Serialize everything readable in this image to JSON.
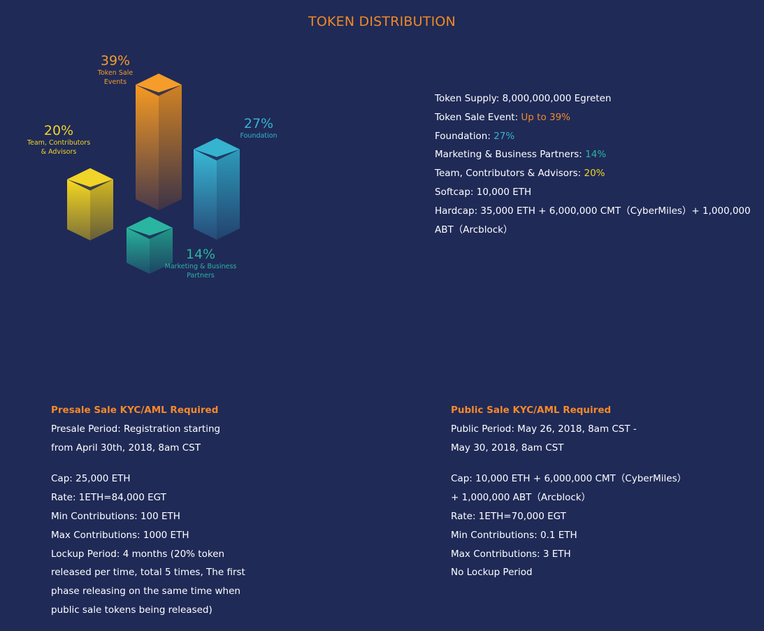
{
  "title": "TOKEN DISTRIBUTION",
  "chart": {
    "segments": [
      {
        "key": "sale",
        "percent": "39%",
        "label": "Token Sale Events",
        "label_lines": [
          "Token Sale",
          "Events"
        ],
        "value": 39,
        "color": "#f59c2a"
      },
      {
        "key": "team",
        "percent": "20%",
        "label": "Team, Contributors & Advisors",
        "label_lines": [
          "Team, Contributors",
          "& Advisors"
        ],
        "value": 20,
        "color": "#f0d427"
      },
      {
        "key": "foundation",
        "percent": "27%",
        "label": "Foundation",
        "label_lines": [
          "Foundation"
        ],
        "value": 27,
        "color": "#35b3cf"
      },
      {
        "key": "marketing",
        "percent": "14%",
        "label": "Marketing & Business Partners",
        "label_lines": [
          "Marketing & Business",
          "Partners"
        ],
        "value": 14,
        "color": "#2ab5a0"
      }
    ]
  },
  "info": {
    "supply_label": "Token Supply: 8,000,000,000 Egreten",
    "sale_label": "Token Sale Event: ",
    "sale_value": "Up to 39%",
    "foundation_label": "Foundation: ",
    "foundation_value": "27%",
    "marketing_label": "Marketing & Business Partners: ",
    "marketing_value": "14%",
    "team_label": "Team, Contributors & Advisors: ",
    "team_value": "20%",
    "softcap": "Softcap: 10,000 ETH",
    "hardcap_line1": "Hardcap: 35,000 ETH + 6,000,000 CMT（CyberMiles）+ 1,000,000",
    "hardcap_line2": "ABT（Arcblock）"
  },
  "presale": {
    "heading": "Presale Sale KYC/AML Required",
    "period_line1": "Presale Period: Registration starting",
    "period_line2": "from April 30th, 2018, 8am CST",
    "cap": "Cap: 25,000 ETH",
    "rate": "Rate: 1ETH=84,000 EGT",
    "min": "Min Contributions: 100 ETH",
    "max": "Max Contributions: 1000 ETH",
    "lockup_line1": "Lockup Period: 4 months (20% token",
    "lockup_line2": "released per time, total 5 times, The first",
    "lockup_line3": "phase releasing on the same time when",
    "lockup_line4": "public sale tokens being released)"
  },
  "public": {
    "heading": "Public Sale KYC/AML Required",
    "period_line1": "Public Period: May 26, 2018, 8am CST -",
    "period_line2": "May 30, 2018, 8am CST",
    "cap_line1": "Cap: 10,000 ETH + 6,000,000 CMT（CyberMiles）",
    "cap_line2": "+ 1,000,000 ABT（Arcblock）",
    "rate": "Rate: 1ETH=70,000 EGT",
    "min": "Min Contributions: 0.1 ETH",
    "max": "Max Contributions: 3 ETH",
    "lockup": "No Lockup Period"
  }
}
